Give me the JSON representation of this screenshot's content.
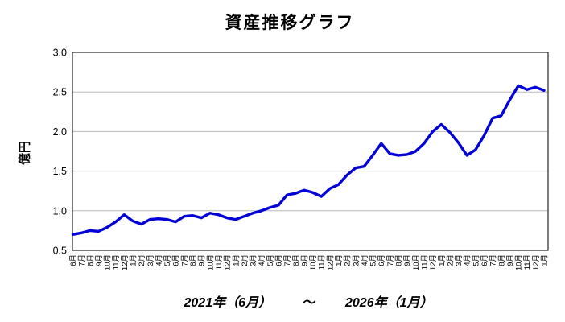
{
  "title": "資産推移グラフ",
  "y_axis": {
    "label": "億円"
  },
  "footer": {
    "start_label": "2021年（6月）",
    "separator": "〜",
    "end_label": "2026年（1月）"
  },
  "chart_data": {
    "type": "line",
    "title": "資産推移グラフ",
    "xlabel": "",
    "ylabel": "億円",
    "ylim": [
      0.5,
      3.0
    ],
    "yticks": [
      0.5,
      1.0,
      1.5,
      2.0,
      2.5,
      3.0
    ],
    "grid": true,
    "legend": "none",
    "line_color": "#0202d6",
    "spine_color": "#262626",
    "grid_color": "#b8b8b8",
    "x_labels": [
      "6月",
      "7月",
      "8月",
      "9月",
      "10月",
      "11月",
      "12月",
      "1月",
      "2月",
      "3月",
      "4月",
      "5月",
      "6月",
      "7月",
      "8月",
      "9月",
      "10月",
      "11月",
      "12月",
      "1月",
      "2月",
      "3月",
      "4月",
      "5月",
      "6月",
      "7月",
      "8月",
      "9月",
      "10月",
      "11月",
      "12月",
      "1月",
      "2月",
      "3月",
      "4月",
      "5月",
      "6月",
      "7月",
      "8月",
      "9月",
      "10月",
      "11月",
      "12月",
      "1月",
      "2月",
      "3月",
      "4月",
      "5月",
      "6月",
      "7月",
      "8月",
      "9月",
      "10月",
      "11月",
      "12月",
      "1月"
    ],
    "values": [
      0.7,
      0.72,
      0.75,
      0.74,
      0.79,
      0.86,
      0.95,
      0.87,
      0.83,
      0.89,
      0.9,
      0.89,
      0.86,
      0.93,
      0.94,
      0.91,
      0.97,
      0.95,
      0.91,
      0.89,
      0.93,
      0.97,
      1.0,
      1.04,
      1.07,
      1.2,
      1.22,
      1.26,
      1.23,
      1.18,
      1.28,
      1.33,
      1.45,
      1.54,
      1.56,
      1.7,
      1.85,
      1.72,
      1.7,
      1.71,
      1.75,
      1.85,
      2.0,
      2.09,
      1.99,
      1.86,
      1.7,
      1.77,
      1.95,
      2.17,
      2.2,
      2.4,
      2.58,
      2.53,
      2.56,
      2.52
    ],
    "period_start": "2021年（6月）",
    "period_end": "2026年（1月）"
  }
}
